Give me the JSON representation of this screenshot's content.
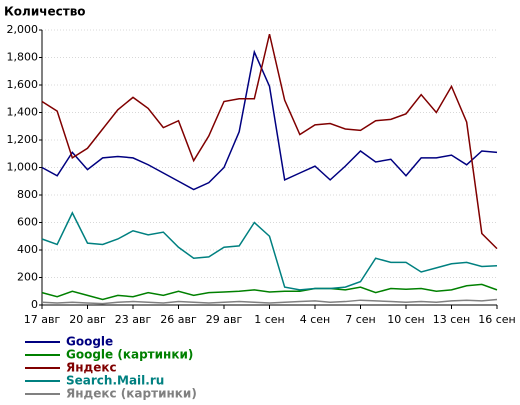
{
  "chart_data": {
    "type": "line",
    "title": "Количество",
    "categories": [
      "17 авг",
      null,
      null,
      "20 авг",
      null,
      null,
      "23 авг",
      null,
      null,
      "26 авг",
      null,
      null,
      "29 авг",
      null,
      null,
      "1 сен",
      null,
      null,
      "4 сен",
      null,
      null,
      "7 сен",
      null,
      null,
      "10 сен",
      null,
      null,
      "13 сен",
      null,
      null,
      "16 сен"
    ],
    "series": [
      {
        "name": "Google",
        "color": "#000080",
        "values": [
          1000,
          940,
          1110,
          985,
          1070,
          1080,
          1070,
          1020,
          960,
          900,
          840,
          890,
          1000,
          1260,
          1840,
          1590,
          910,
          960,
          1010,
          910,
          1010,
          1120,
          1040,
          1060,
          940,
          1070,
          1070,
          1090,
          1020,
          1120,
          1110
        ]
      },
      {
        "name": "Google (картинки)",
        "color": "#008000",
        "values": [
          90,
          60,
          100,
          70,
          40,
          70,
          60,
          90,
          70,
          100,
          70,
          90,
          95,
          100,
          110,
          95,
          100,
          100,
          120,
          120,
          110,
          130,
          90,
          120,
          115,
          120,
          100,
          110,
          140,
          150,
          110
        ]
      },
      {
        "name": "Яндекс",
        "color": "#800000",
        "values": [
          1480,
          1410,
          1070,
          1140,
          1280,
          1420,
          1510,
          1430,
          1290,
          1340,
          1050,
          1230,
          1480,
          1500,
          1500,
          1970,
          1490,
          1240,
          1310,
          1320,
          1280,
          1270,
          1340,
          1350,
          1390,
          1530,
          1400,
          1590,
          1330,
          520,
          410
        ]
      },
      {
        "name": "Search.Mail.ru",
        "color": "#008080",
        "values": [
          480,
          440,
          670,
          450,
          440,
          480,
          540,
          510,
          530,
          420,
          340,
          350,
          420,
          430,
          600,
          500,
          130,
          110,
          120,
          120,
          130,
          170,
          340,
          310,
          310,
          240,
          270,
          300,
          310,
          280,
          285
        ]
      },
      {
        "name": "Яндекс (картинки)",
        "color": "#808080",
        "values": [
          20,
          15,
          20,
          15,
          10,
          20,
          25,
          20,
          15,
          25,
          20,
          15,
          20,
          25,
          20,
          15,
          20,
          25,
          30,
          20,
          25,
          35,
          30,
          25,
          20,
          25,
          20,
          30,
          35,
          30,
          40
        ]
      }
    ],
    "ylim": [
      0,
      2000
    ],
    "yticks": [
      0,
      200,
      400,
      600,
      800,
      {
        "value": 1000,
        "label": "1,000"
      },
      {
        "value": 1200,
        "label": "1,200"
      },
      {
        "value": 1400,
        "label": "1,400"
      },
      {
        "value": 1600,
        "label": "1,600"
      },
      {
        "value": 1800,
        "label": "1,800"
      },
      {
        "value": 2000,
        "label": "2,000"
      }
    ],
    "grid": true,
    "legend": "bottom"
  }
}
